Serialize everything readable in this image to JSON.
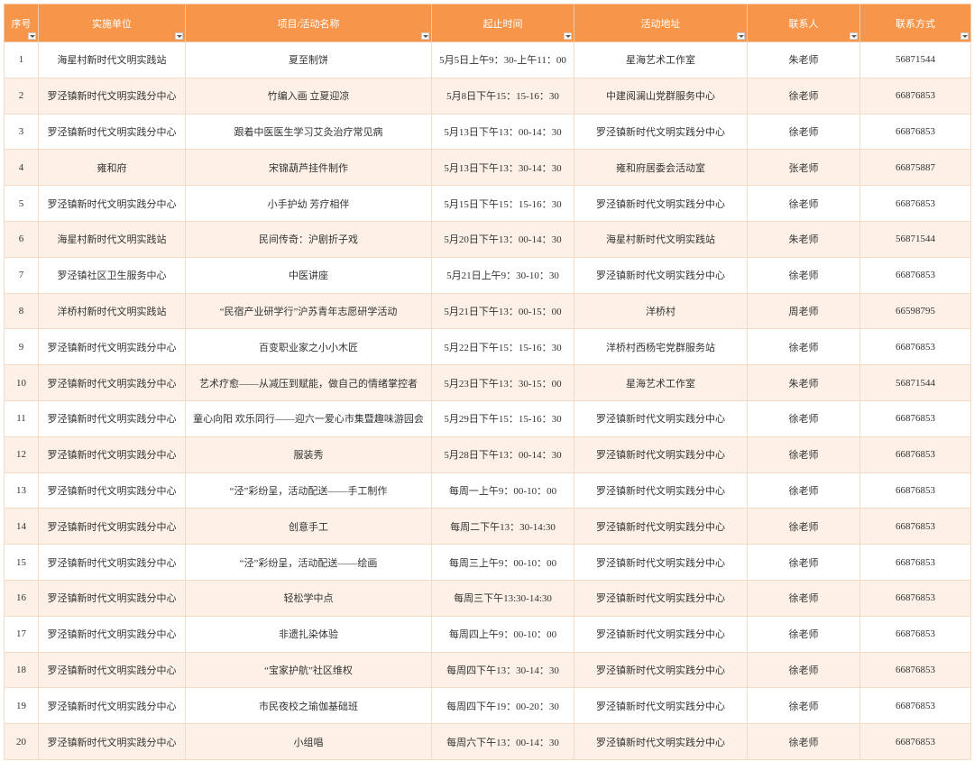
{
  "table": {
    "headers": [
      "序号",
      "实施单位",
      "项目/活动名称",
      "起止时间",
      "活动地址",
      "联系人",
      "联系方式"
    ],
    "rows": [
      [
        "1",
        "海星村新时代文明实践站",
        "夏至制饼",
        "5月5日上午9：30-上午11：00",
        "星海艺术工作室",
        "朱老师",
        "56871544"
      ],
      [
        "2",
        "罗泾镇新时代文明实践分中心",
        "竹编入画 立夏迎凉",
        "5月8日下午15：15-16：30",
        "中建阅澜山党群服务中心",
        "徐老师",
        "66876853"
      ],
      [
        "3",
        "罗泾镇新时代文明实践分中心",
        "跟着中医医生学习艾灸治疗常见病",
        "5月13日下午13：00-14：30",
        "罗泾镇新时代文明实践分中心",
        "徐老师",
        "66876853"
      ],
      [
        "4",
        "雍和府",
        "宋锦葫芦挂件制作",
        "5月13日下午13：30-14：30",
        "雍和府居委会活动室",
        "张老师",
        "66875887"
      ],
      [
        "5",
        "罗泾镇新时代文明实践分中心",
        "小手护幼 芳疗相伴",
        "5月15日下午15：15-16：30",
        "罗泾镇新时代文明实践分中心",
        "徐老师",
        "66876853"
      ],
      [
        "6",
        "海星村新时代文明实践站",
        "民间传奇：沪剧折子戏",
        "5月20日下午13：00-14：30",
        "海星村新时代文明实践站",
        "朱老师",
        "56871544"
      ],
      [
        "7",
        "罗泾镇社区卫生服务中心",
        "中医讲座",
        "5月21日上午9：30-10：30",
        "罗泾镇新时代文明实践分中心",
        "徐老师",
        "66876853"
      ],
      [
        "8",
        "洋桥村新时代文明实践站",
        "“民宿产业研学行”沪苏青年志愿研学活动",
        "5月21日下午13：00-15：00",
        "洋桥村",
        "周老师",
        "66598795"
      ],
      [
        "9",
        "罗泾镇新时代文明实践分中心",
        "百变职业家之小小木匠",
        "5月22日下午15：15-16：30",
        "洋桥村西杨宅党群服务站",
        "徐老师",
        "66876853"
      ],
      [
        "10",
        "罗泾镇新时代文明实践分中心",
        "艺术疗愈——从减压到赋能，做自己的情绪掌控者",
        "5月23日下午13：30-15：00",
        "星海艺术工作室",
        "朱老师",
        "56871544"
      ],
      [
        "11",
        "罗泾镇新时代文明实践分中心",
        "童心向阳 欢乐同行——迎六一爱心市集暨趣味游园会",
        "5月29日下午15：15-16：30",
        "罗泾镇新时代文明实践分中心",
        "徐老师",
        "66876853"
      ],
      [
        "12",
        "罗泾镇新时代文明实践分中心",
        "服装秀",
        "5月28日下午13：00-14：30",
        "罗泾镇新时代文明实践分中心",
        "徐老师",
        "66876853"
      ],
      [
        "13",
        "罗泾镇新时代文明实践分中心",
        "“泾”彩纷呈，活动配送——手工制作",
        "每周一上午9：00-10：00",
        "罗泾镇新时代文明实践分中心",
        "徐老师",
        "66876853"
      ],
      [
        "14",
        "罗泾镇新时代文明实践分中心",
        "创意手工",
        "每周二下午13：30-14:30",
        "罗泾镇新时代文明实践分中心",
        "徐老师",
        "66876853"
      ],
      [
        "15",
        "罗泾镇新时代文明实践分中心",
        "“泾”彩纷呈，活动配送——绘画",
        "每周三上午9：00-10：00",
        "罗泾镇新时代文明实践分中心",
        "徐老师",
        "66876853"
      ],
      [
        "16",
        "罗泾镇新时代文明实践分中心",
        "轻松学中点",
        "每周三下午13:30-14:30",
        "罗泾镇新时代文明实践分中心",
        "徐老师",
        "66876853"
      ],
      [
        "17",
        "罗泾镇新时代文明实践分中心",
        "非遗扎染体验",
        "每周四上午9：00-10：00",
        "罗泾镇新时代文明实践分中心",
        "徐老师",
        "66876853"
      ],
      [
        "18",
        "罗泾镇新时代文明实践分中心",
        "“宝家护航”社区维权",
        "每周四下午13：30-14：30",
        "罗泾镇新时代文明实践分中心",
        "徐老师",
        "66876853"
      ],
      [
        "19",
        "罗泾镇新时代文明实践分中心",
        "市民夜校之瑜伽基础班",
        "每周四下午19：00-20：30",
        "罗泾镇新时代文明实践分中心",
        "徐老师",
        "66876853"
      ],
      [
        "20",
        "罗泾镇新时代文明实践分中心",
        "小组唱",
        "每周六下午13：00-14：30",
        "罗泾镇新时代文明实践分中心",
        "徐老师",
        "66876853"
      ]
    ]
  }
}
